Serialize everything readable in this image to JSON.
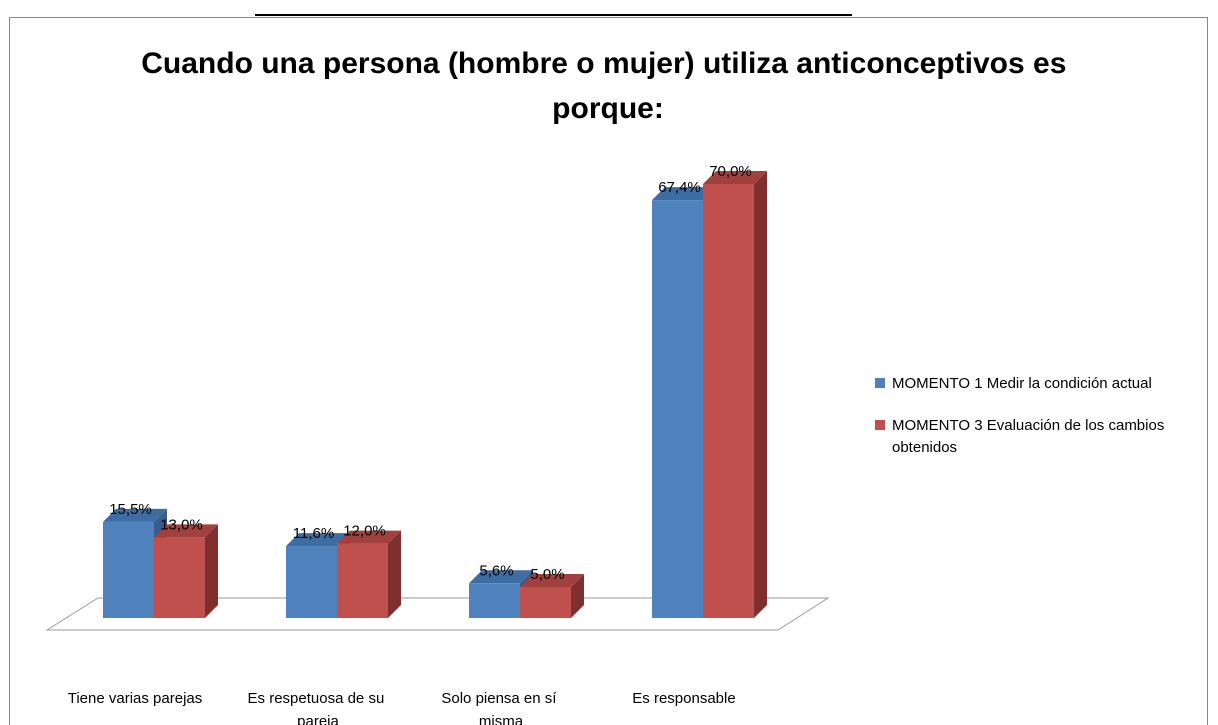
{
  "chart_data": {
    "type": "bar3d",
    "title": "Cuando una persona (hombre o mujer) utiliza anticonceptivos es porque:",
    "categories": [
      "Tiene varias parejas",
      "Es respetuosa de su pareja",
      "Solo piensa en sí misma",
      "Es responsable"
    ],
    "series": [
      {
        "name": "MOMENTO 1 Medir la condición actual",
        "color": "#4f81bd",
        "side": "#385d8a",
        "top": "#3d6da3",
        "values": [
          15.5,
          11.6,
          5.6,
          67.4
        ],
        "value_labels": [
          "15,5%",
          "11,6%",
          "5,6%",
          "67,4%"
        ]
      },
      {
        "name": "MOMENTO 3 Evaluación de los cambios obtenidos",
        "color": "#c0504d",
        "side": "#7f302e",
        "top": "#a2403d",
        "values": [
          13.0,
          12.0,
          5.0,
          70.0
        ],
        "value_labels": [
          "13,0%",
          "12,0%",
          "5,0%",
          "70,0%"
        ]
      }
    ],
    "legend": "right"
  }
}
